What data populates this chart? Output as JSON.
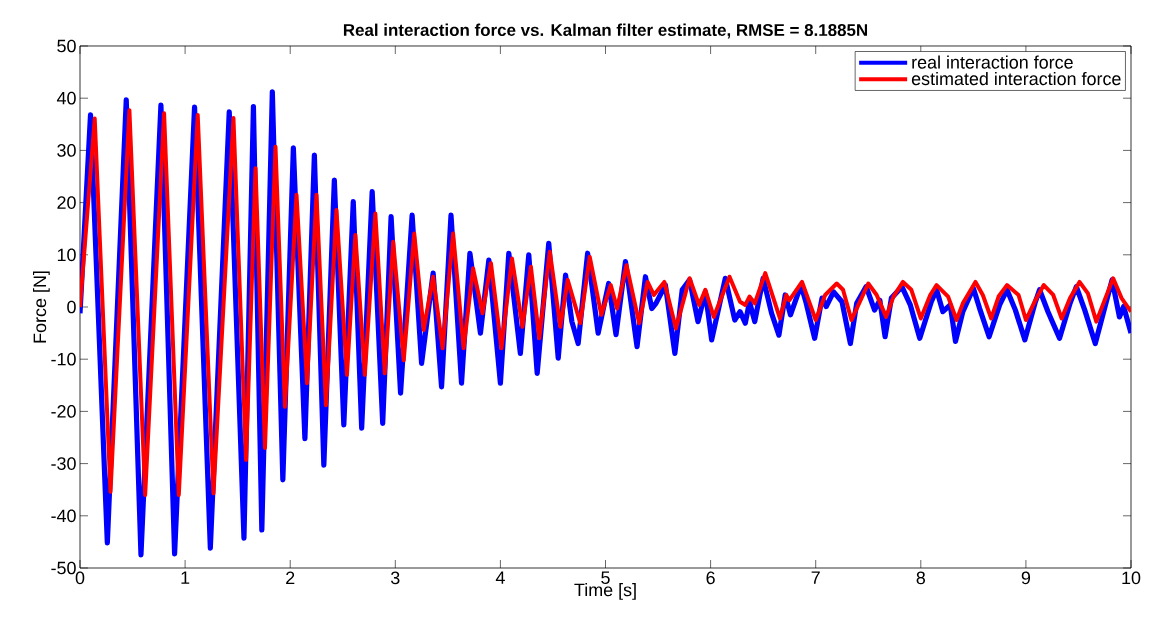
{
  "chart_data": {
    "type": "line",
    "title": "Real interaction force vs. Kalman filter estimate, RMSE = 8.1885N",
    "xlabel": "Time [s]",
    "ylabel": "Force [N]",
    "xlim": [
      0,
      10
    ],
    "ylim": [
      -50,
      50
    ],
    "xticks": [
      0,
      1,
      2,
      3,
      4,
      5,
      6,
      7,
      8,
      9,
      10
    ],
    "yticks": [
      -50,
      -40,
      -30,
      -20,
      -10,
      0,
      10,
      20,
      30,
      40,
      50
    ],
    "legend": "top right",
    "marker": "none",
    "line_style": "solid",
    "series": [
      {
        "name": "real interaction force",
        "color": "#0000ff",
        "x": [
          0,
          0.1,
          0.26,
          0.44,
          0.58,
          0.77,
          0.9,
          1.09,
          1.24,
          1.42,
          1.56,
          1.65,
          1.73,
          1.83,
          1.93,
          2.03,
          2.14,
          2.23,
          2.32,
          2.42,
          2.51,
          2.6,
          2.68,
          2.78,
          2.88,
          2.96,
          3.05,
          3.16,
          3.25,
          3.36,
          3.44,
          3.53,
          3.63,
          3.71,
          3.81,
          3.89,
          4.0,
          4.08,
          4.19,
          4.27,
          4.35,
          4.46,
          4.55,
          4.62,
          4.68,
          4.74,
          4.83,
          4.93,
          5.03,
          5.1,
          5.19,
          5.3,
          5.38,
          5.44,
          5.48,
          5.57,
          5.66,
          5.73,
          5.8,
          5.88,
          5.95,
          6.01,
          6.14,
          6.23,
          6.28,
          6.33,
          6.37,
          6.42,
          6.5,
          6.58,
          6.65,
          6.71,
          6.76,
          6.86,
          6.91,
          6.99,
          7.06,
          7.1,
          7.17,
          7.25,
          7.33,
          7.39,
          7.48,
          7.56,
          7.61,
          7.66,
          7.72,
          7.82,
          7.9,
          7.99,
          8.1,
          8.15,
          8.21,
          8.28,
          8.33,
          8.4,
          8.5,
          8.56,
          8.65,
          8.75,
          8.82,
          8.9,
          8.99,
          9.09,
          9.13,
          9.21,
          9.32,
          9.42,
          9.48,
          9.56,
          9.66,
          9.82,
          9.89,
          9.93,
          10
        ],
        "values": [
          -1.2,
          36.8,
          -45.2,
          39.7,
          -47.5,
          38.7,
          -47.3,
          38.3,
          -46.2,
          37.4,
          -44.3,
          38.4,
          -42.7,
          41.2,
          -33.1,
          30.5,
          -25.2,
          29.1,
          -30.3,
          24.3,
          -22.6,
          20.2,
          -23.2,
          22.1,
          -22.3,
          17.3,
          -16.5,
          17.6,
          -10.8,
          6.5,
          -15.3,
          17.6,
          -14.6,
          10.3,
          -5.0,
          9.0,
          -14.6,
          10.3,
          -8.9,
          10.0,
          -12.7,
          12.2,
          -9.8,
          6.1,
          -2.8,
          -7.0,
          10.3,
          -5.0,
          4.5,
          -5.3,
          8.7,
          -7.6,
          5.8,
          -0.3,
          0.7,
          4.2,
          -8.9,
          3.3,
          5.2,
          -2.8,
          2.9,
          -6.3,
          5.5,
          -2.5,
          -0.9,
          -3.1,
          1.0,
          -2.8,
          5.5,
          -1.2,
          -5.4,
          2.3,
          -1.5,
          4.2,
          0.7,
          -6.0,
          1.7,
          0.1,
          2.9,
          1.0,
          -7.0,
          0.7,
          3.9,
          -0.6,
          1.3,
          -5.7,
          1.7,
          3.9,
          0.4,
          -6.0,
          1.0,
          3.3,
          -0.9,
          0.4,
          -6.6,
          -0.9,
          3.6,
          -0.3,
          -5.7,
          0.4,
          3.3,
          -0.6,
          -6.3,
          1.0,
          3.3,
          -0.9,
          -6.0,
          0.7,
          3.9,
          -0.6,
          -7.0,
          5.2,
          -1.9,
          0.1,
          -5.0
        ]
      },
      {
        "name": "estimated interaction force",
        "color": "#ff0000",
        "x": [
          0,
          0.14,
          0.29,
          0.47,
          0.62,
          0.8,
          0.94,
          1.12,
          1.27,
          1.46,
          1.58,
          1.67,
          1.76,
          1.86,
          1.95,
          2.06,
          2.16,
          2.25,
          2.34,
          2.44,
          2.54,
          2.62,
          2.71,
          2.81,
          2.9,
          2.98,
          3.08,
          3.18,
          3.27,
          3.36,
          3.45,
          3.55,
          3.65,
          3.74,
          3.83,
          3.91,
          4.01,
          4.11,
          4.21,
          4.29,
          4.37,
          4.47,
          4.57,
          4.64,
          4.76,
          4.85,
          4.96,
          5.05,
          5.11,
          5.2,
          5.32,
          5.4,
          5.46,
          5.56,
          5.67,
          5.8,
          5.89,
          5.95,
          6.03,
          6.18,
          6.28,
          6.33,
          6.37,
          6.42,
          6.52,
          6.66,
          6.72,
          6.75,
          6.87,
          7.0,
          7.09,
          7.2,
          7.26,
          7.34,
          7.5,
          7.58,
          7.67,
          7.74,
          7.83,
          7.91,
          8.0,
          8.09,
          8.15,
          8.26,
          8.34,
          8.4,
          8.52,
          8.59,
          8.67,
          8.74,
          8.82,
          8.93,
          9.0,
          9.09,
          9.17,
          9.26,
          9.34,
          9.42,
          9.51,
          9.59,
          9.67,
          9.83,
          9.91,
          10
        ],
        "values": [
          0.0,
          36.1,
          -35.4,
          37.7,
          -36.0,
          37.1,
          -36.0,
          36.8,
          -35.7,
          36.2,
          -29.3,
          26.6,
          -27.0,
          30.7,
          -19.1,
          21.5,
          -14.6,
          21.5,
          -18.8,
          18.6,
          -13.0,
          13.8,
          -13.0,
          17.9,
          -12.7,
          12.5,
          -10.2,
          14.1,
          -4.4,
          5.8,
          -7.9,
          14.1,
          -7.9,
          7.4,
          -1.2,
          8.4,
          -7.9,
          9.3,
          -3.8,
          7.7,
          -6.0,
          10.6,
          -3.8,
          5.2,
          -3.1,
          9.6,
          -1.5,
          4.2,
          -0.3,
          8.0,
          -3.1,
          4.8,
          2.3,
          4.8,
          -4.1,
          5.5,
          0.4,
          3.3,
          -1.9,
          5.8,
          1.0,
          0.4,
          2.0,
          0.7,
          6.5,
          -2.2,
          2.3,
          1.3,
          4.8,
          -2.5,
          2.3,
          4.5,
          3.3,
          -2.5,
          4.5,
          2.3,
          -1.9,
          2.0,
          4.8,
          3.3,
          -2.2,
          2.3,
          4.2,
          2.0,
          -2.5,
          0.7,
          4.8,
          2.3,
          -2.2,
          2.0,
          4.2,
          2.3,
          -2.5,
          1.3,
          4.2,
          2.3,
          -2.2,
          1.7,
          4.8,
          2.6,
          -2.8,
          5.5,
          1.7,
          -0.9
        ]
      }
    ]
  }
}
